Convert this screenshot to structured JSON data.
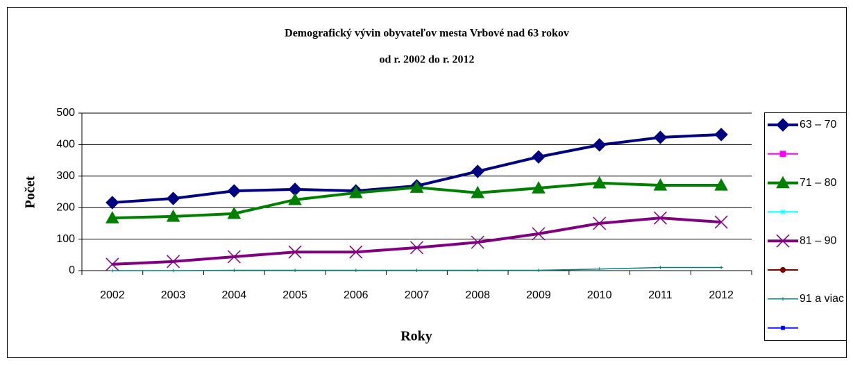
{
  "chart_data": {
    "type": "line",
    "title": [
      "Demografický vývin obyvateľov mesta Vrbové nad 63 rokov",
      "od r. 2002 do r. 2012"
    ],
    "x_label": "Roky",
    "y_label": "Počet",
    "categories": [
      "2002",
      "2003",
      "2004",
      "2005",
      "2006",
      "2007",
      "2008",
      "2009",
      "2010",
      "2011",
      "2012"
    ],
    "ylim": [
      0,
      500
    ],
    "yticks": [
      0,
      100,
      200,
      300,
      400,
      500
    ],
    "grid": true,
    "legend": "right",
    "series": [
      {
        "name": "63 – 70",
        "color": "#000080",
        "marker": "diamond",
        "values": [
          216,
          229,
          253,
          258,
          253,
          269,
          315,
          361,
          399,
          423,
          432
        ]
      },
      {
        "color": "#ff00ff",
        "marker": "square"
      },
      {
        "name": "71 – 80",
        "color": "#008000",
        "marker": "triangle",
        "values": [
          167,
          172,
          181,
          225,
          247,
          264,
          247,
          262,
          278,
          271,
          271
        ]
      },
      {
        "color": "#00ffff",
        "marker": "star"
      },
      {
        "name": "81 – 90",
        "color": "#800080",
        "marker": "x",
        "values": [
          20,
          29,
          44,
          59,
          59,
          73,
          90,
          117,
          150,
          167,
          154
        ]
      },
      {
        "color": "#800000",
        "marker": "circle"
      },
      {
        "name": "91 a viac",
        "color": "#008080",
        "marker": "plus",
        "values": [
          0,
          0,
          1,
          1,
          1,
          1,
          1,
          1,
          5,
          10,
          10
        ]
      },
      {
        "color": "#0000ff",
        "marker": "smallsquare"
      }
    ]
  }
}
